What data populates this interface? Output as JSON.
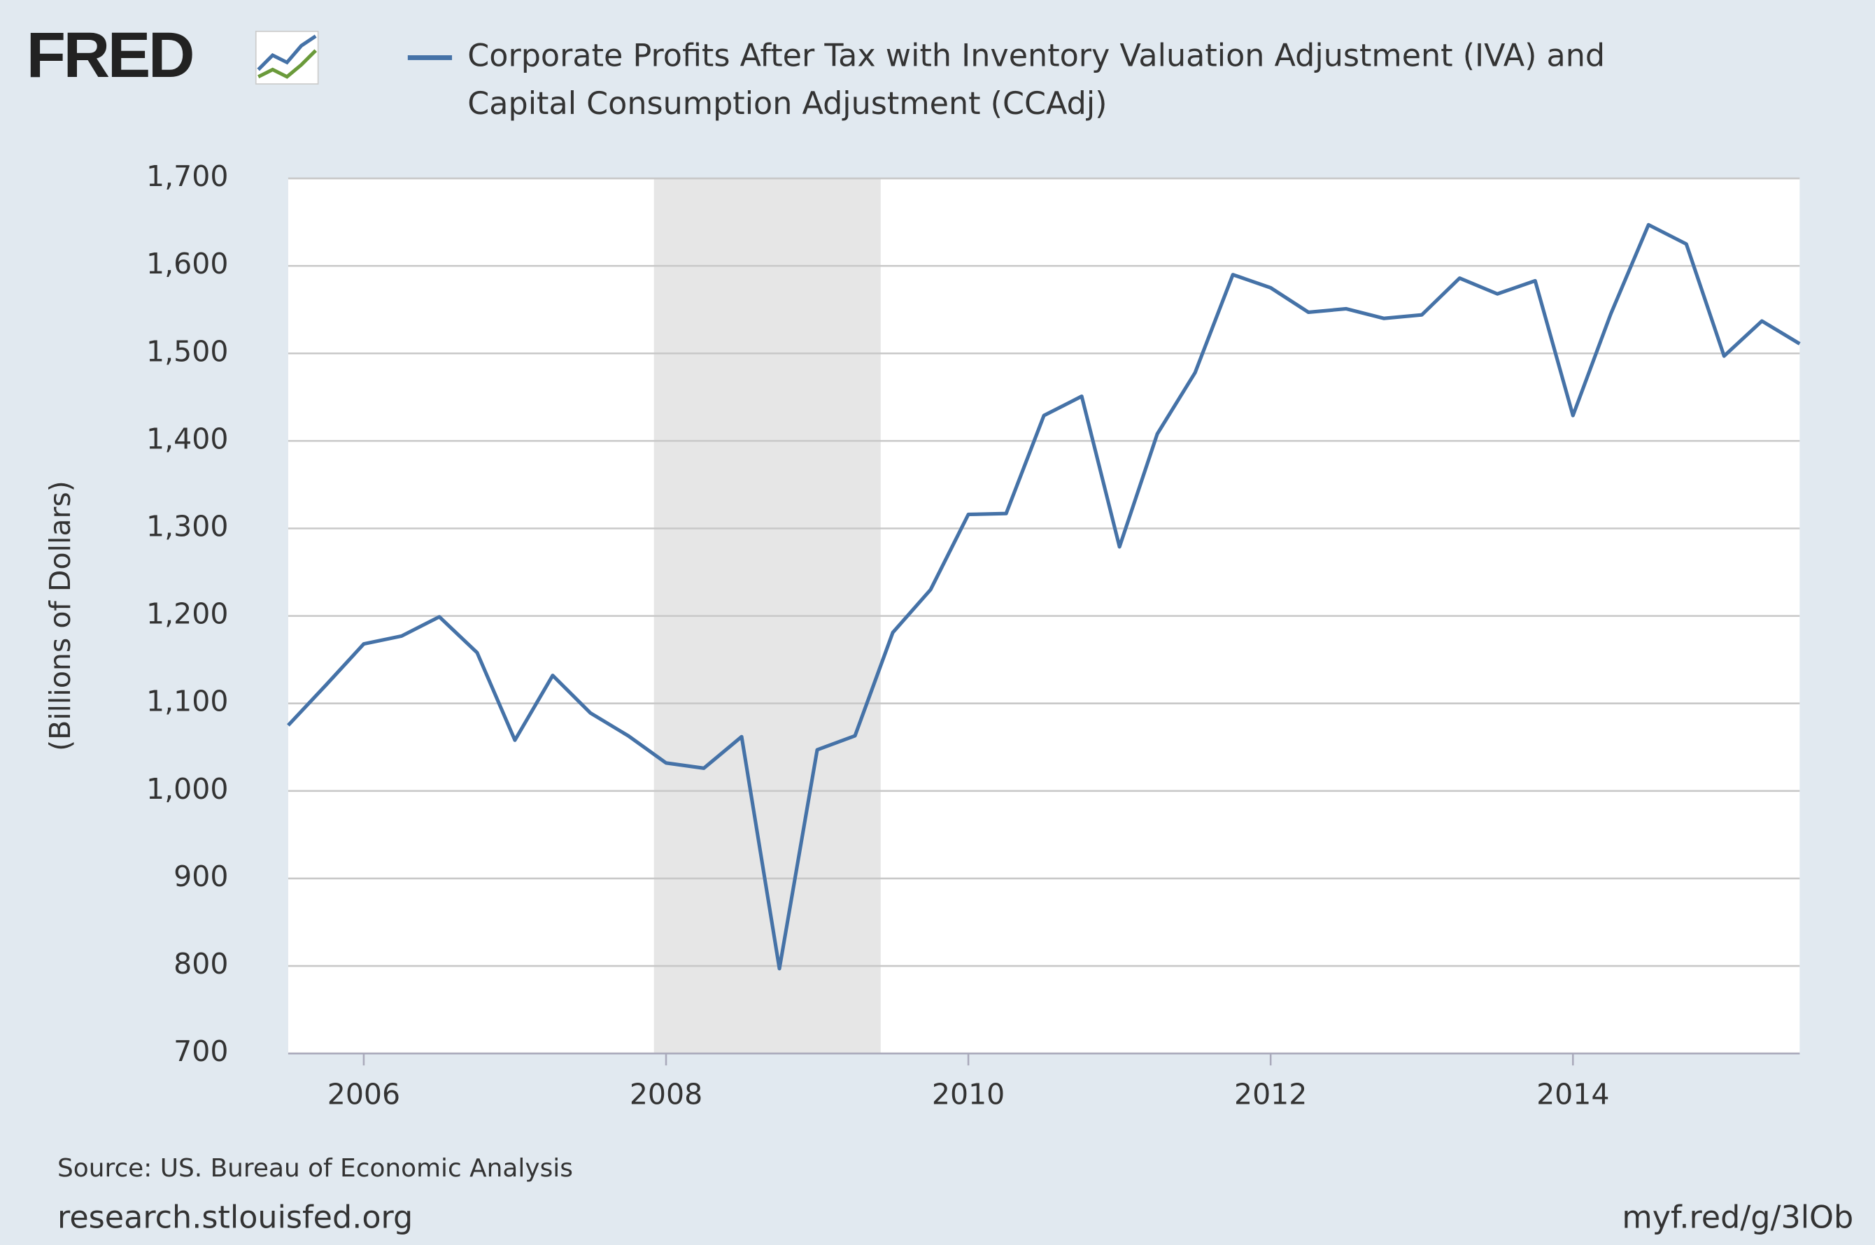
{
  "chart_data": {
    "type": "line",
    "logo": "FRED",
    "x": [
      2005.5,
      2005.75,
      2006,
      2006.25,
      2006.5,
      2006.75,
      2007,
      2007.25,
      2007.5,
      2007.75,
      2008,
      2008.25,
      2008.5,
      2008.75,
      2009,
      2009.25,
      2009.5,
      2009.75,
      2010,
      2010.25,
      2010.5,
      2010.75,
      2011,
      2011.25,
      2011.5,
      2011.75,
      2012,
      2012.25,
      2012.5,
      2012.75,
      2013,
      2013.25,
      2013.5,
      2013.75,
      2014,
      2014.25,
      2014.5,
      2014.75,
      2015,
      2015.25,
      2015.5
    ],
    "series": [
      {
        "name": "Corporate Profits After Tax with Inventory Valuation Adjustment (IVA) and Capital Consumption Adjustment (CCAdj)",
        "color": "#4572a7",
        "values": [
          1075,
          1121,
          1168,
          1177,
          1199,
          1158,
          1058,
          1132,
          1089,
          1063,
          1032,
          1026,
          1062,
          797,
          1047,
          1063,
          1181,
          1230,
          1316,
          1317,
          1429,
          1451,
          1279,
          1408,
          1478,
          1590,
          1575,
          1547,
          1551,
          1540,
          1544,
          1586,
          1568,
          1583,
          1429,
          1545,
          1647,
          1625,
          1497,
          1537,
          1511
        ]
      }
    ],
    "recessions": [
      [
        2007.92,
        2009.42
      ]
    ],
    "recession_color": "#e6e6e6",
    "xlim": [
      2005.5,
      2015.5
    ],
    "xticks": [
      2006,
      2008,
      2010,
      2012,
      2014
    ],
    "ylim": [
      700,
      1700
    ],
    "yticks": [
      700,
      800,
      900,
      {
        "value": 1000,
        "label": "1,000"
      },
      {
        "value": 1100,
        "label": "1,100"
      },
      {
        "value": 1200,
        "label": "1,200"
      },
      {
        "value": 1300,
        "label": "1,300"
      },
      {
        "value": 1400,
        "label": "1,400"
      },
      {
        "value": 1500,
        "label": "1,500"
      },
      {
        "value": 1600,
        "label": "1,600"
      },
      {
        "value": 1700,
        "label": "1,700"
      }
    ],
    "y_label": "(Billions of Dollars)",
    "grid": true,
    "source": "Source: US. Bureau of Economic Analysis",
    "site": "research.stlouisfed.org",
    "short_link": "myf.red/g/3lOb"
  }
}
